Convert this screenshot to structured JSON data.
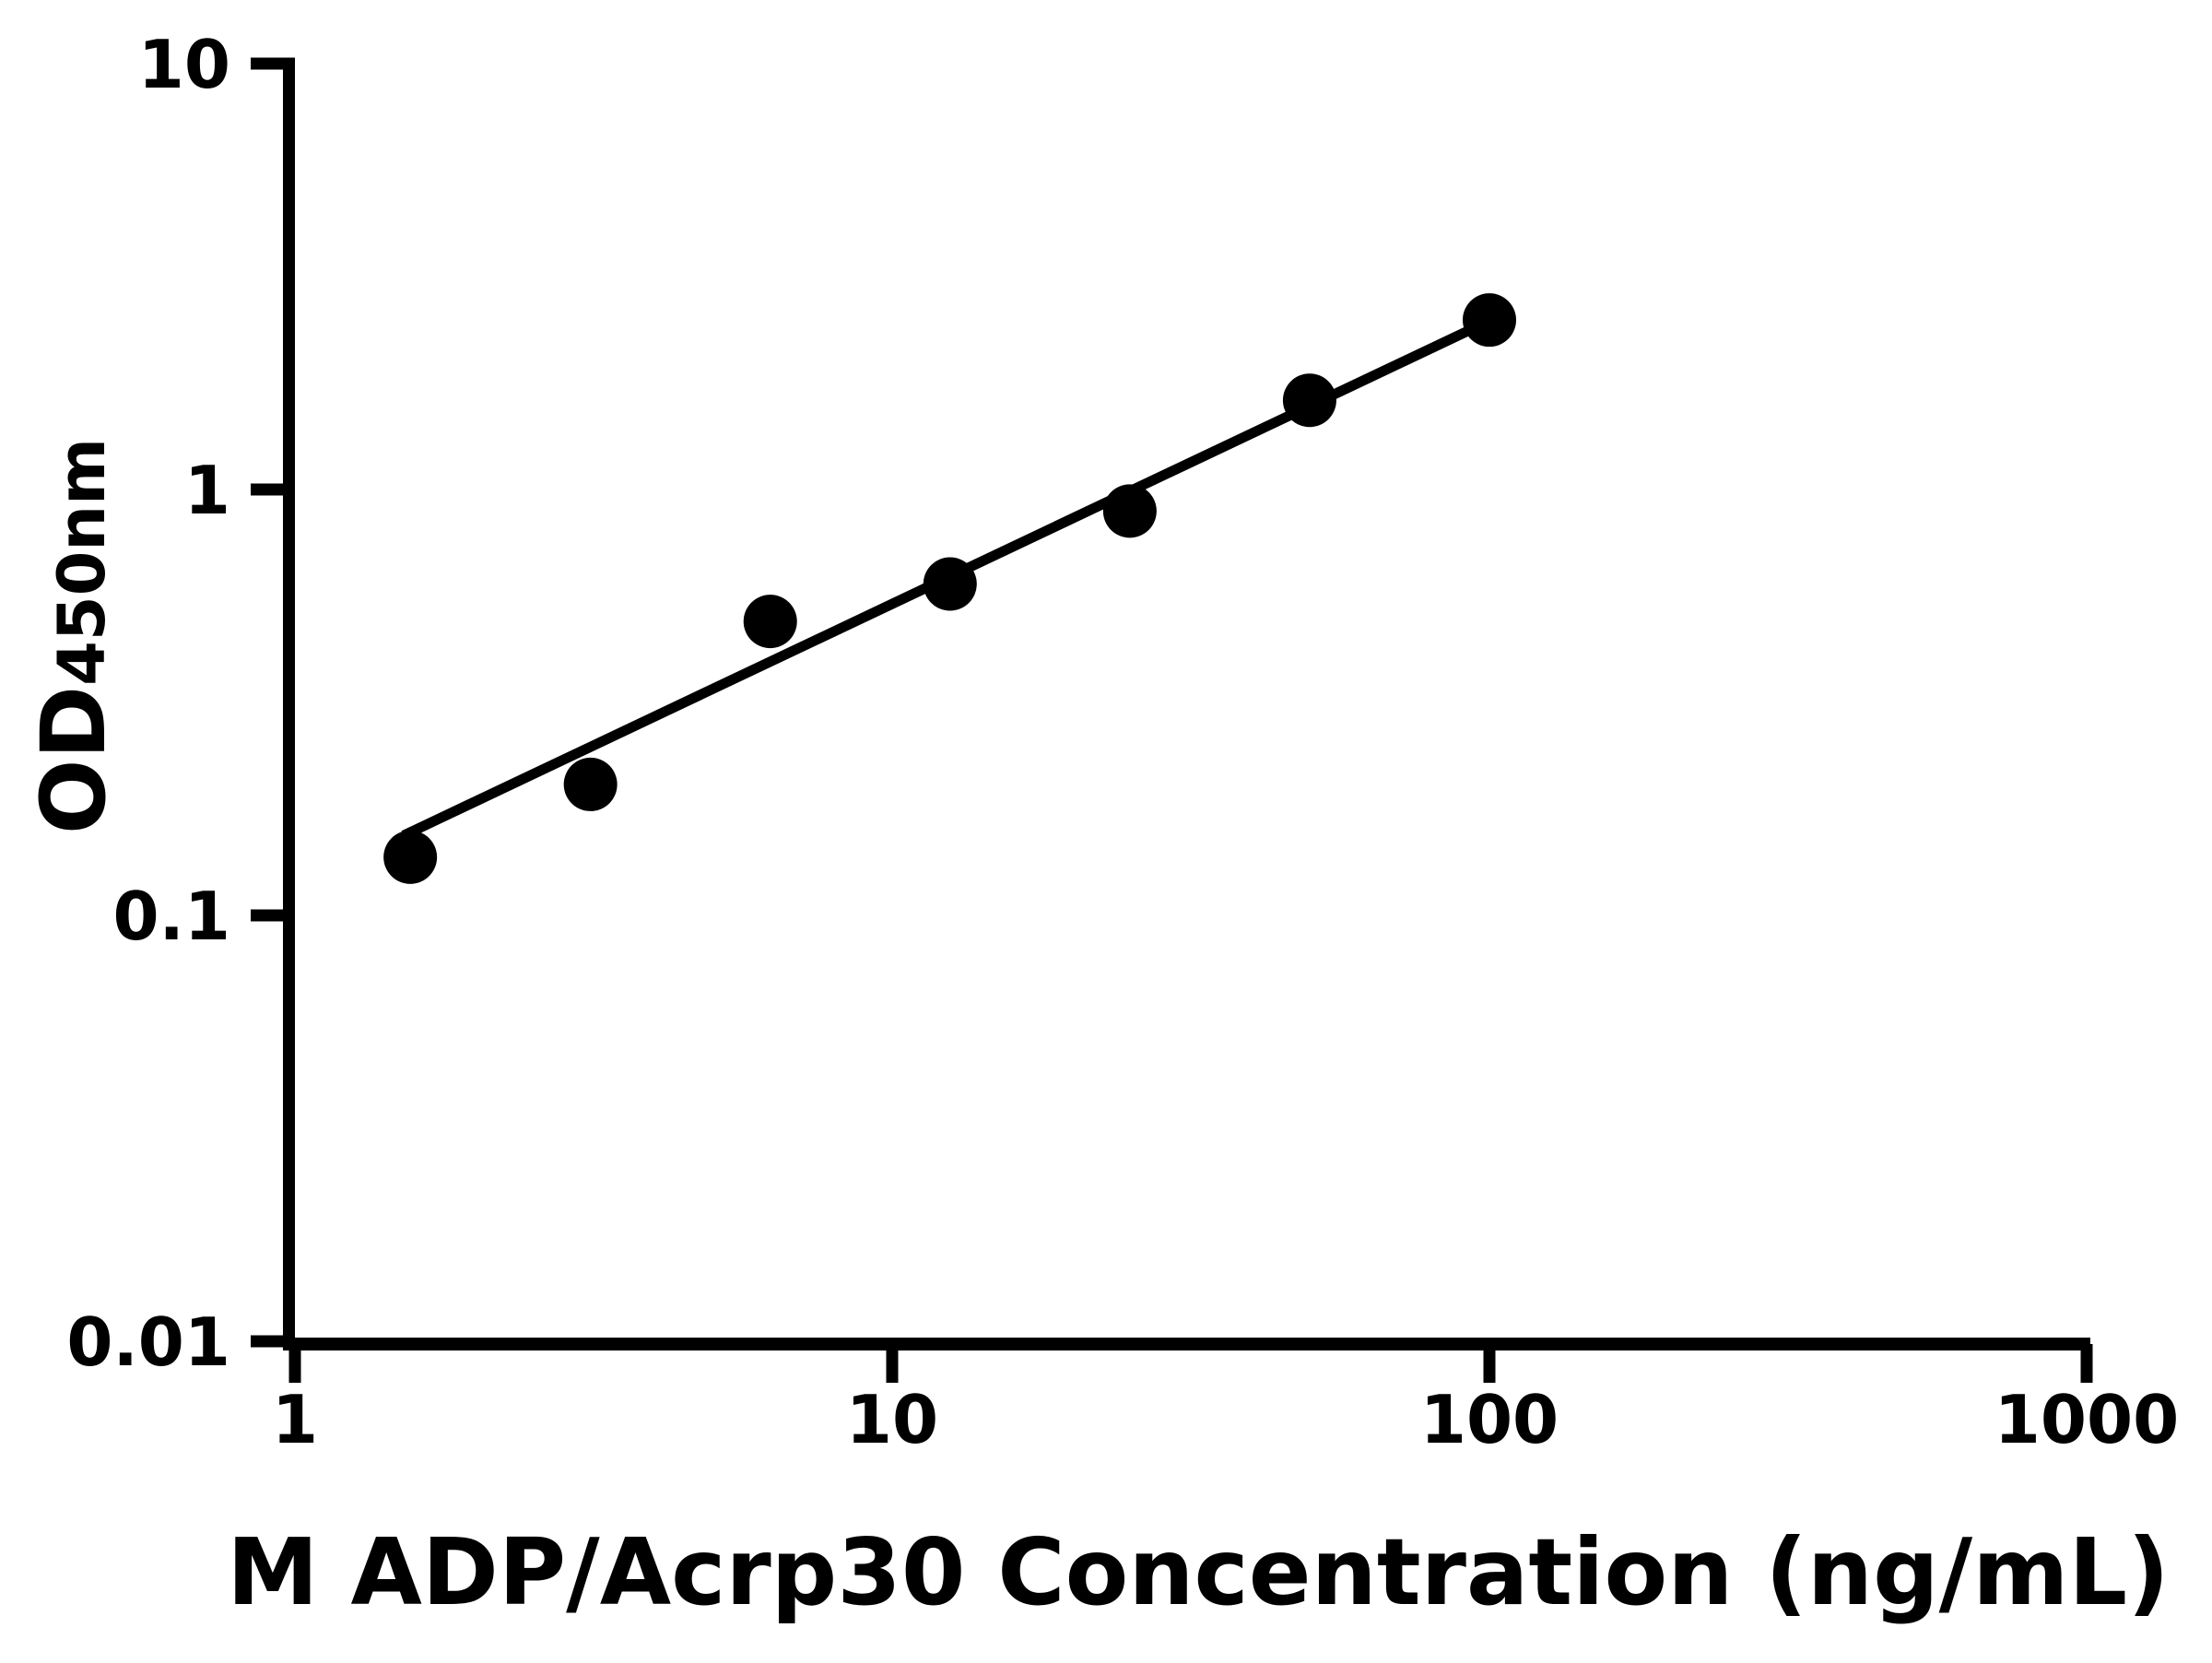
{
  "chart_data": {
    "type": "scatter",
    "xlabel": "M ADP/Acrp30 Concentration (ng/mL)",
    "ylabel": "OD",
    "ylabel_subscript": "450nm",
    "x_scale": "log",
    "y_scale": "log",
    "xlim": [
      1,
      1000
    ],
    "ylim": [
      0.01,
      10
    ],
    "grid": false,
    "legend": null,
    "x_ticks": [
      {
        "label": "1",
        "value": 1
      },
      {
        "label": "10",
        "value": 10
      },
      {
        "label": "100",
        "value": 100
      },
      {
        "label": "1000",
        "value": 1000
      }
    ],
    "y_ticks": [
      {
        "label": "10",
        "value": 10
      },
      {
        "label": "1",
        "value": 1
      },
      {
        "label": "0.1",
        "value": 0.1
      },
      {
        "label": "0.01",
        "value": 0.01
      }
    ],
    "series": [
      {
        "name": "fit-line",
        "type": "line",
        "color": "#000000",
        "points": [
          {
            "x": 1.52,
            "y": 0.154
          },
          {
            "x": 100,
            "y": 2.49
          }
        ]
      },
      {
        "name": "standard-curve-points",
        "type": "scatter",
        "marker_color": "#000000",
        "points": [
          {
            "x": 1.56,
            "y": 0.137
          },
          {
            "x": 3.125,
            "y": 0.203
          },
          {
            "x": 6.25,
            "y": 0.49
          },
          {
            "x": 12.5,
            "y": 0.6
          },
          {
            "x": 25,
            "y": 0.89
          },
          {
            "x": 50,
            "y": 1.62
          },
          {
            "x": 100,
            "y": 2.5
          }
        ]
      }
    ],
    "colors": {
      "axis": "#000000",
      "marker": "#000000",
      "background": "#ffffff"
    }
  }
}
